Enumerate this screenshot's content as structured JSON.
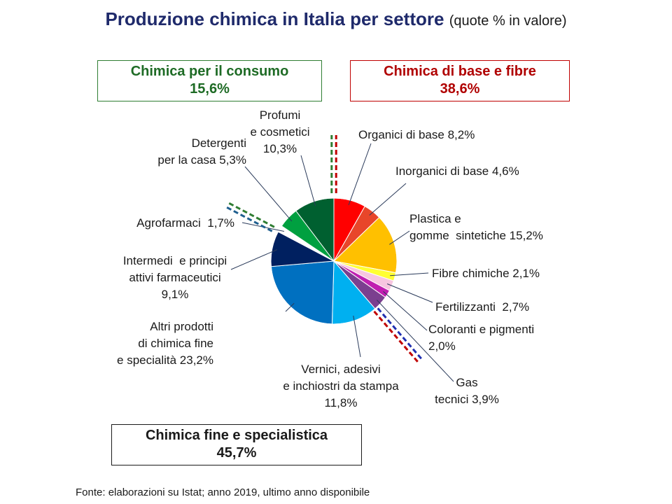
{
  "title": "Produzione chimica in Italia per settore",
  "subtitle": "(quote % in valore)",
  "groups": {
    "consumo": {
      "label": "Chimica per il consumo",
      "value": "15,6%",
      "color": "#1e6b25"
    },
    "base": {
      "label": "Chimica di base e fibre",
      "value": "38,6%",
      "color": "#b00000"
    },
    "fine": {
      "label": "Chimica fine e specialistica",
      "value": "45,7%",
      "color": "#1a1a1a"
    }
  },
  "source": "Fonte: elaborazioni su Istat; anno 2019, ultimo anno disponibile",
  "chart_data": {
    "type": "pie",
    "title": "Produzione chimica in Italia per settore",
    "unit": "%",
    "start_direction": "12 o'clock, clockwise",
    "slices": [
      {
        "name": "Organici di base",
        "value": 8.2,
        "label": [
          "Organici di base 8,2%"
        ],
        "color": "#ff0000"
      },
      {
        "name": "Inorganici di base",
        "value": 4.6,
        "label": [
          "Inorganici di base 4,6%"
        ],
        "color": "#e8462a"
      },
      {
        "name": "Plastica e gomme sintetiche",
        "value": 15.2,
        "label": [
          "Plastica e",
          "gomme  sintetiche 15,2%"
        ],
        "color": "#ffc000"
      },
      {
        "name": "Fibre chimiche",
        "value": 2.1,
        "label": [
          "Fibre chimiche 2,1%"
        ],
        "color": "#ffff33"
      },
      {
        "name": "Fertilizzanti",
        "value": 2.7,
        "label": [
          "Fertilizzanti  2,7%"
        ],
        "color": "#f7c6e0"
      },
      {
        "name": "Coloranti e pigmenti",
        "value": 2.0,
        "label": [
          "Coloranti e pigmenti",
          "2,0%"
        ],
        "color": "#c01fb0"
      },
      {
        "name": "Gas tecnici",
        "value": 3.9,
        "label": [
          "Gas",
          "tecnici 3,9%"
        ],
        "color": "#7b3f8f"
      },
      {
        "name": "Vernici, adesivi e inchiostri da stampa",
        "value": 11.8,
        "label": [
          "Vernici, adesivi",
          "e inchiostri da stampa",
          "11,8%"
        ],
        "color": "#00b0f0"
      },
      {
        "name": "Altri prodotti di chimica fine e specialità",
        "value": 23.2,
        "label": [
          "Altri prodotti",
          "di chimica fine",
          "e specialità 23,2%"
        ],
        "color": "#0070c0"
      },
      {
        "name": "Intermedi e principi attivi farmaceutici",
        "value": 9.1,
        "label": [
          "Intermedi  e principi",
          "attivi farmaceutici",
          "9,1%"
        ],
        "color": "#002060"
      },
      {
        "name": "Agrofarmaci",
        "value": 1.7,
        "label": [
          "Agrofarmaci  1,7%"
        ],
        "color": "#ffffff"
      },
      {
        "name": "Detergenti per la casa",
        "value": 5.3,
        "label": [
          "Detergenti",
          "per la casa 5,3%"
        ],
        "color": "#00a040"
      },
      {
        "name": "Profumi e cosmetici",
        "value": 10.3,
        "label": [
          "Profumi",
          "e cosmetici",
          "10,3%"
        ],
        "color": "#006030"
      }
    ],
    "group_dividers": [
      {
        "between": [
          "Profumi e cosmetici",
          "Organici di base"
        ],
        "colors": [
          "#c00000",
          "#2f7d32"
        ]
      },
      {
        "between": [
          "Gas tecnici",
          "Vernici, adesivi e inchiostri da stampa"
        ],
        "colors": [
          "#c00000",
          "#1f2fb0"
        ]
      },
      {
        "between": [
          "Intermedi e principi attivi farmaceutici",
          "Agrofarmaci"
        ],
        "colors": [
          "#2f7d32",
          "#1f5f8f"
        ]
      }
    ]
  }
}
